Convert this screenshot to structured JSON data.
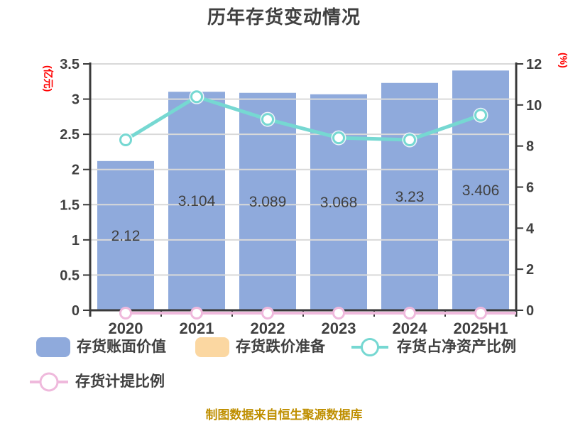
{
  "title": "历年存货变动情况",
  "caption": "制图数据来自恒生聚源数据库",
  "colors": {
    "bar_blue": "#8FAADC",
    "bar_orange": "#FBD7A1",
    "line_teal": "#76D8D2",
    "line_pink": "#EFB9DC",
    "grid": "#D9D9D9",
    "axis": "#3A3A3A",
    "text_dark": "#404040",
    "axis_unit_red": "#FF0000",
    "caption_gold": "#BF8F00"
  },
  "chart_data": {
    "type": "combo-bar-line",
    "title": "历年存货变动情况",
    "categories": [
      "2020",
      "2021",
      "2022",
      "2023",
      "2024",
      "2025H1"
    ],
    "series": [
      {
        "name": "存货账面价值",
        "type": "bar",
        "axis": "left",
        "color": "#8FAADC",
        "values": [
          2.12,
          3.104,
          3.089,
          3.068,
          3.23,
          3.406
        ],
        "labels": [
          "2.12",
          "3.104",
          "3.089",
          "3.068",
          "3.23",
          "3.406"
        ]
      },
      {
        "name": "存货跌价准备",
        "type": "bar",
        "axis": "left",
        "color": "#FBD7A1",
        "values": [
          0,
          0,
          0,
          0,
          0,
          0
        ],
        "labels": []
      },
      {
        "name": "存货占净资产比例",
        "type": "line",
        "axis": "right",
        "color": "#76D8D2",
        "values": [
          8.3,
          10.4,
          9.3,
          8.4,
          8.3,
          9.5
        ],
        "labels": []
      },
      {
        "name": "存货计提比例",
        "type": "line",
        "axis": "right",
        "color": "#EFB9DC",
        "values": [
          0,
          0,
          0,
          0,
          0,
          0
        ],
        "labels": []
      }
    ],
    "left_axis": {
      "label": "(亿元)",
      "min": 0,
      "max": 3.5,
      "tick_values": [
        0,
        0.5,
        1,
        1.5,
        2,
        2.5,
        3,
        3.5
      ],
      "tick_labels": [
        "0",
        "0.5",
        "1",
        "1.5",
        "2",
        "2.5",
        "3",
        "3.5"
      ]
    },
    "right_axis": {
      "label": "(%)",
      "min": 0,
      "max": 12,
      "tick_values": [
        0,
        2,
        4,
        6,
        8,
        10,
        12
      ],
      "tick_labels": [
        "0",
        "2",
        "4",
        "6",
        "8",
        "10",
        "12"
      ]
    },
    "grid": true,
    "legend_position": "bottom"
  },
  "legend": {
    "items": [
      {
        "label": "存货账面价值",
        "marker": "bar",
        "color": "#8FAADC"
      },
      {
        "label": "存货跌价准备",
        "marker": "bar",
        "color": "#FBD7A1"
      },
      {
        "label": "存货占净资产比例",
        "marker": "line-circle",
        "color": "#76D8D2"
      },
      {
        "label": "存货计提比例",
        "marker": "line-circle",
        "color": "#EFB9DC"
      }
    ]
  }
}
